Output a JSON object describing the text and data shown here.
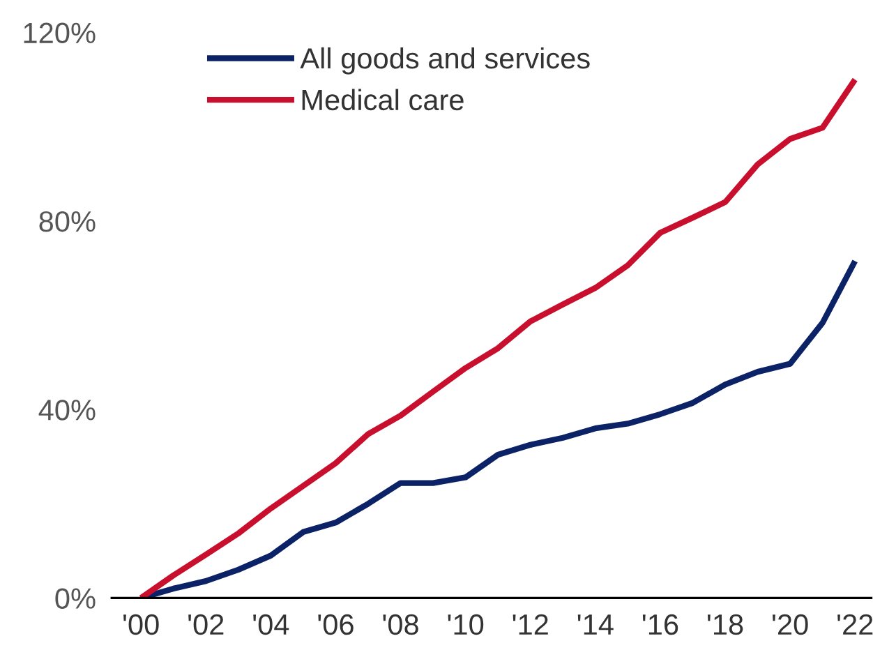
{
  "chart_data": {
    "type": "line",
    "x": [
      2000,
      2001,
      2002,
      2003,
      2004,
      2005,
      2006,
      2007,
      2008,
      2009,
      2010,
      2011,
      2012,
      2013,
      2014,
      2015,
      2016,
      2017,
      2018,
      2019,
      2020,
      2021,
      2022
    ],
    "series": [
      {
        "name": "All goods and services",
        "color": "#0b2266",
        "values": [
          0,
          2,
          3.6,
          6,
          9,
          14,
          16,
          20,
          24.4,
          24.4,
          25.6,
          30.4,
          32.5,
          34,
          36,
          37,
          39,
          41.4,
          45.3,
          48,
          49.7,
          58.4,
          71.5
        ]
      },
      {
        "name": "Medical care",
        "color": "#c8102e",
        "values": [
          0,
          4.8,
          9.2,
          13.7,
          19,
          23.8,
          28.6,
          34.8,
          38.7,
          43.8,
          48.8,
          53,
          58.7,
          62.3,
          65.8,
          70.6,
          77.5,
          80.7,
          84,
          92,
          97.4,
          99.8,
          110
        ]
      }
    ],
    "xlim": [
      1999.1,
      2022.5
    ],
    "xticks": [
      {
        "value": 2000,
        "label": "'00"
      },
      {
        "value": 2002,
        "label": "'02"
      },
      {
        "value": 2004,
        "label": "'04"
      },
      {
        "value": 2006,
        "label": "'06"
      },
      {
        "value": 2008,
        "label": "'08"
      },
      {
        "value": 2010,
        "label": "'10"
      },
      {
        "value": 2012,
        "label": "'12"
      },
      {
        "value": 2014,
        "label": "'14"
      },
      {
        "value": 2016,
        "label": "'16"
      },
      {
        "value": 2018,
        "label": "'18"
      },
      {
        "value": 2020,
        "label": "'20"
      },
      {
        "value": 2022,
        "label": "'22"
      }
    ],
    "ylim": [
      0,
      120
    ],
    "yticks": [
      {
        "value": 0,
        "label": "0%"
      },
      {
        "value": 40,
        "label": "40%"
      },
      {
        "value": 80,
        "label": "80%"
      },
      {
        "value": 120,
        "label": "120%"
      }
    ],
    "grid": false,
    "legend": "top",
    "marker": "none",
    "line_style": "solid"
  }
}
